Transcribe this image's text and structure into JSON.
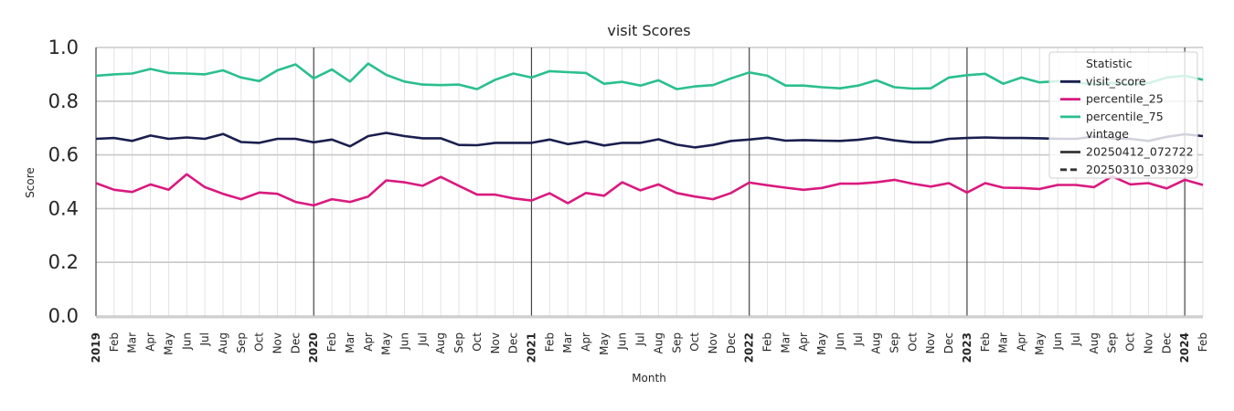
{
  "chart_data": {
    "type": "line",
    "title": "visit Scores",
    "xlabel": "Month",
    "ylabel": "Score",
    "ylim": [
      0.0,
      1.0
    ],
    "yticks": [
      "0.0",
      "0.2",
      "0.4",
      "0.6",
      "0.8",
      "1.0"
    ],
    "grid": true,
    "legend_position": "upper right",
    "x": [
      "2019-01",
      "2019-02",
      "2019-03",
      "2019-04",
      "2019-05",
      "2019-06",
      "2019-07",
      "2019-08",
      "2019-09",
      "2019-10",
      "2019-11",
      "2019-12",
      "2020-01",
      "2020-02",
      "2020-03",
      "2020-04",
      "2020-05",
      "2020-06",
      "2020-07",
      "2020-08",
      "2020-09",
      "2020-10",
      "2020-11",
      "2020-12",
      "2021-01",
      "2021-02",
      "2021-03",
      "2021-04",
      "2021-05",
      "2021-06",
      "2021-07",
      "2021-08",
      "2021-09",
      "2021-10",
      "2021-11",
      "2021-12",
      "2022-01",
      "2022-02",
      "2022-03",
      "2022-04",
      "2022-05",
      "2022-06",
      "2022-07",
      "2022-08",
      "2022-09",
      "2022-10",
      "2022-11",
      "2022-12",
      "2023-01",
      "2023-02",
      "2023-03",
      "2023-04",
      "2023-05",
      "2023-06",
      "2023-07",
      "2023-08",
      "2023-09",
      "2023-10",
      "2023-11",
      "2023-12",
      "2024-01",
      "2024-02"
    ],
    "xtick_labels": [
      "2019",
      "Feb",
      "Mar",
      "Apr",
      "May",
      "Jun",
      "Jul",
      "Aug",
      "Sep",
      "Oct",
      "Nov",
      "Dec",
      "2020",
      "Feb",
      "Mar",
      "Apr",
      "May",
      "Jun",
      "Jul",
      "Aug",
      "Sep",
      "Oct",
      "Nov",
      "Dec",
      "2021",
      "Feb",
      "Mar",
      "Apr",
      "May",
      "Jun",
      "Jul",
      "Aug",
      "Sep",
      "Oct",
      "Nov",
      "Dec",
      "2022",
      "Feb",
      "Mar",
      "Apr",
      "May",
      "Jun",
      "Jul",
      "Aug",
      "Sep",
      "Oct",
      "Nov",
      "Dec",
      "2023",
      "Feb",
      "Mar",
      "Apr",
      "May",
      "Jun",
      "Jul",
      "Aug",
      "Sep",
      "Oct",
      "Nov",
      "Dec",
      "2024",
      "Feb"
    ],
    "series": [
      {
        "name": "visit_score",
        "vintage": "20250412_072722",
        "color": "#1a1f4e",
        "style": "solid",
        "values": [
          0.66,
          0.663,
          0.652,
          0.672,
          0.66,
          0.665,
          0.66,
          0.678,
          0.648,
          0.645,
          0.66,
          0.66,
          0.647,
          0.657,
          0.632,
          0.67,
          0.682,
          0.67,
          0.662,
          0.662,
          0.637,
          0.636,
          0.645,
          0.645,
          0.645,
          0.657,
          0.64,
          0.65,
          0.635,
          0.645,
          0.645,
          0.658,
          0.638,
          0.628,
          0.637,
          0.652,
          0.657,
          0.664,
          0.653,
          0.655,
          0.653,
          0.652,
          0.656,
          0.665,
          0.654,
          0.647,
          0.647,
          0.66,
          0.663,
          0.665,
          0.663,
          0.663,
          0.662,
          0.66,
          0.66,
          0.668,
          0.662,
          0.66,
          0.652,
          0.667,
          0.677,
          0.67
        ]
      },
      {
        "name": "percentile_25",
        "vintage": "20250412_072722",
        "color": "#d91a7f",
        "style": "solid",
        "values": [
          0.495,
          0.47,
          0.462,
          0.49,
          0.47,
          0.528,
          0.48,
          0.455,
          0.435,
          0.46,
          0.455,
          0.425,
          0.412,
          0.435,
          0.425,
          0.445,
          0.505,
          0.498,
          0.485,
          0.518,
          0.485,
          0.452,
          0.452,
          0.438,
          0.43,
          0.457,
          0.42,
          0.458,
          0.448,
          0.498,
          0.468,
          0.49,
          0.458,
          0.445,
          0.435,
          0.458,
          0.497,
          0.487,
          0.478,
          0.47,
          0.477,
          0.493,
          0.493,
          0.498,
          0.507,
          0.493,
          0.482,
          0.495,
          0.46,
          0.495,
          0.478,
          0.477,
          0.473,
          0.488,
          0.488,
          0.48,
          0.52,
          0.49,
          0.495,
          0.475,
          0.507,
          0.488
        ]
      },
      {
        "name": "percentile_75",
        "vintage": "20250412_072722",
        "color": "#2abf8e",
        "style": "solid",
        "values": [
          0.895,
          0.9,
          0.903,
          0.92,
          0.905,
          0.903,
          0.9,
          0.915,
          0.888,
          0.875,
          0.915,
          0.937,
          0.885,
          0.918,
          0.873,
          0.94,
          0.898,
          0.873,
          0.862,
          0.86,
          0.862,
          0.845,
          0.88,
          0.903,
          0.888,
          0.912,
          0.908,
          0.905,
          0.865,
          0.872,
          0.858,
          0.878,
          0.845,
          0.855,
          0.86,
          0.885,
          0.907,
          0.895,
          0.858,
          0.858,
          0.852,
          0.848,
          0.858,
          0.878,
          0.852,
          0.847,
          0.848,
          0.888,
          0.897,
          0.902,
          0.865,
          0.888,
          0.87,
          0.875,
          0.87,
          0.862,
          0.868,
          0.862,
          0.867,
          0.888,
          0.895,
          0.88
        ]
      }
    ],
    "legend": {
      "title1": "Statistic",
      "statistic_entries": [
        {
          "label": "visit_score",
          "color": "#1a1f4e"
        },
        {
          "label": "percentile_25",
          "color": "#d91a7f"
        },
        {
          "label": "percentile_75",
          "color": "#2abf8e"
        }
      ],
      "title2": "vintage",
      "vintage_entries": [
        {
          "label": "20250412_072722",
          "style": "solid"
        },
        {
          "label": "20250310_033029",
          "style": "dashed"
        }
      ]
    }
  }
}
